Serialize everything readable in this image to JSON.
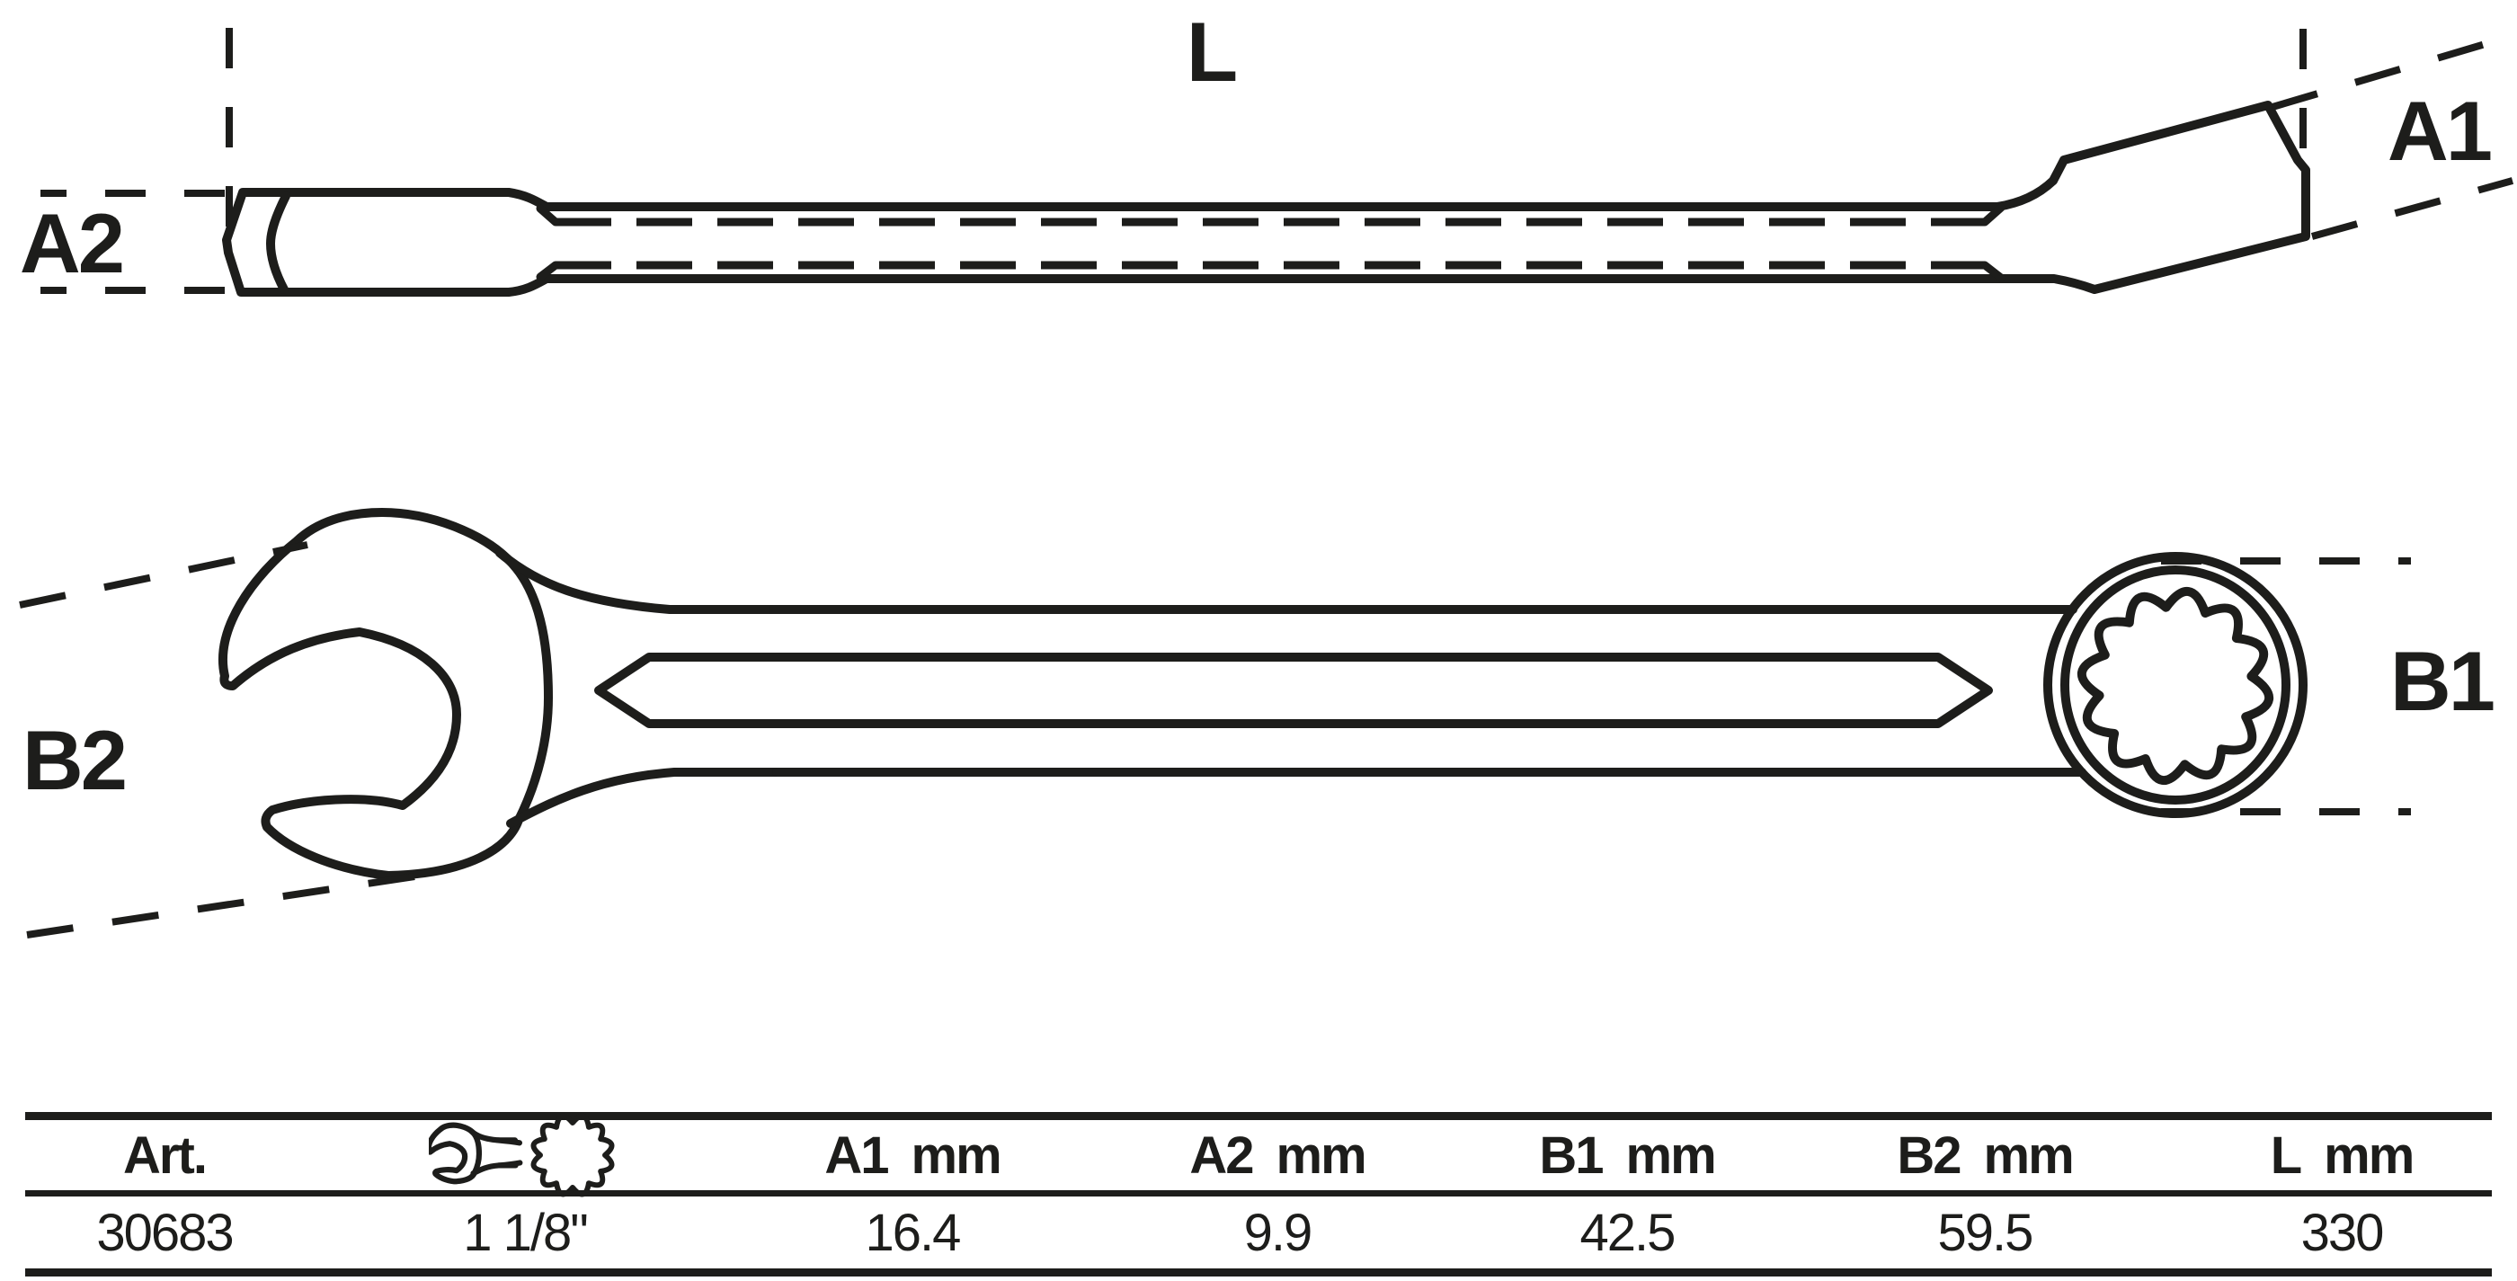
{
  "drawing": {
    "labels": {
      "length": "L",
      "a1": "A1",
      "a2": "A2",
      "b1": "B1",
      "b2": "B2"
    }
  },
  "table": {
    "headers": [
      {
        "label": "Art.",
        "unit": ""
      },
      {
        "label": "",
        "unit": ""
      },
      {
        "label": "A1",
        "unit": "mm"
      },
      {
        "label": "A2",
        "unit": "mm"
      },
      {
        "label": "B1",
        "unit": "mm"
      },
      {
        "label": "B2",
        "unit": "mm"
      },
      {
        "label": "L",
        "unit": "mm"
      }
    ],
    "row": [
      "30683",
      "1 1/8\"",
      "16.4",
      "9.9",
      "42.5",
      "59.5",
      "330"
    ]
  }
}
